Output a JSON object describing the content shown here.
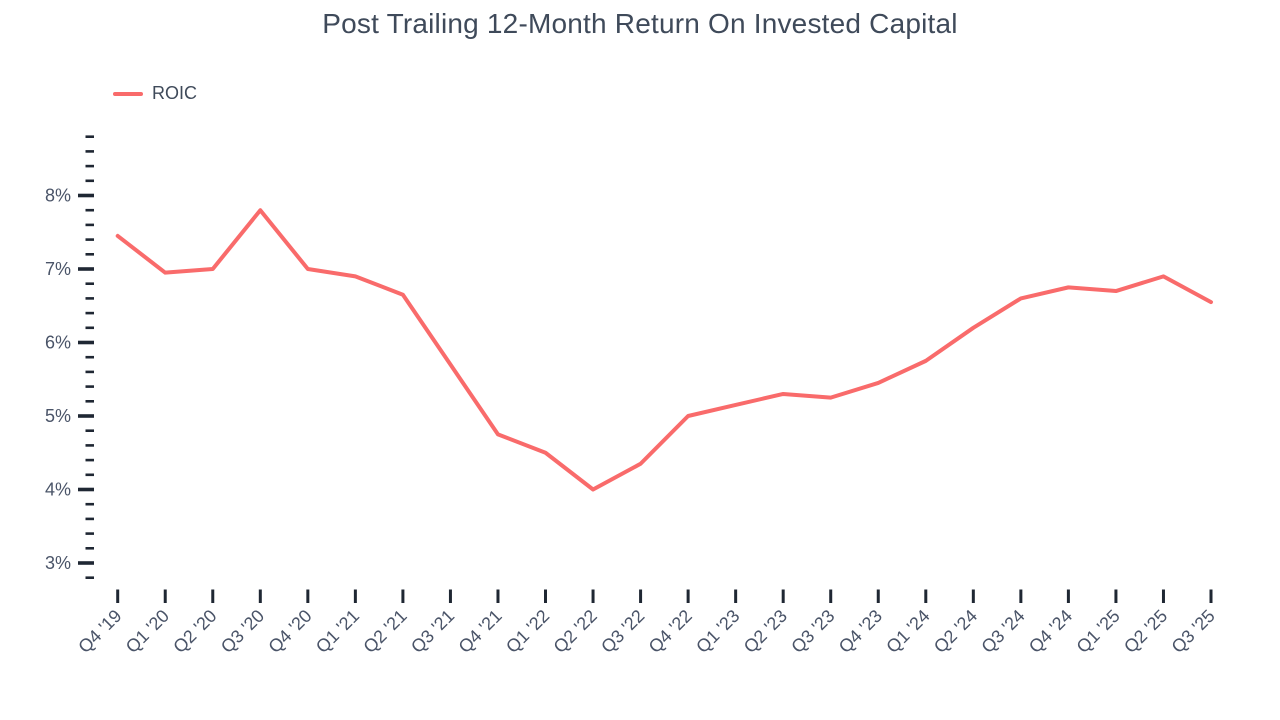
{
  "chart": {
    "title": "Post Trailing 12-Month Return On Invested Capital",
    "legend_label": "ROIC"
  },
  "chart_data": {
    "type": "line",
    "title": "Post Trailing 12-Month Return On Invested Capital",
    "categories": [
      "Q4 '19",
      "Q1 '20",
      "Q2 '20",
      "Q3 '20",
      "Q4 '20",
      "Q1 '21",
      "Q2 '21",
      "Q3 '21",
      "Q4 '21",
      "Q1 '22",
      "Q2 '22",
      "Q3 '22",
      "Q4 '22",
      "Q1 '23",
      "Q2 '23",
      "Q3 '23",
      "Q4 '23",
      "Q1 '24",
      "Q2 '24",
      "Q3 '24",
      "Q4 '24",
      "Q1 '25",
      "Q2 '25",
      "Q3 '25"
    ],
    "series": [
      {
        "name": "ROIC",
        "values": [
          7.45,
          6.95,
          7.0,
          7.8,
          7.0,
          6.9,
          6.65,
          5.7,
          4.75,
          4.5,
          4.0,
          4.35,
          5.0,
          5.15,
          5.3,
          5.25,
          5.45,
          5.75,
          6.2,
          6.6,
          6.75,
          6.7,
          6.9,
          6.55
        ]
      }
    ],
    "xlabel": "",
    "ylabel": "",
    "y_unit": "%",
    "ylim": [
      2.8,
      8.8
    ],
    "y_major_ticks": [
      3,
      4,
      5,
      6,
      7,
      8
    ],
    "y_minor_step": 0.2,
    "y_tick_labels": [
      "3%",
      "4%",
      "5%",
      "6%",
      "7%",
      "8%"
    ],
    "grid": false,
    "legend_position": "top-left",
    "colors": {
      "line": "#f96b6b",
      "title_text": "#3f4a5a",
      "axis_text": "#4a5468",
      "tick": "#1f2733",
      "background": "#ffffff"
    }
  }
}
